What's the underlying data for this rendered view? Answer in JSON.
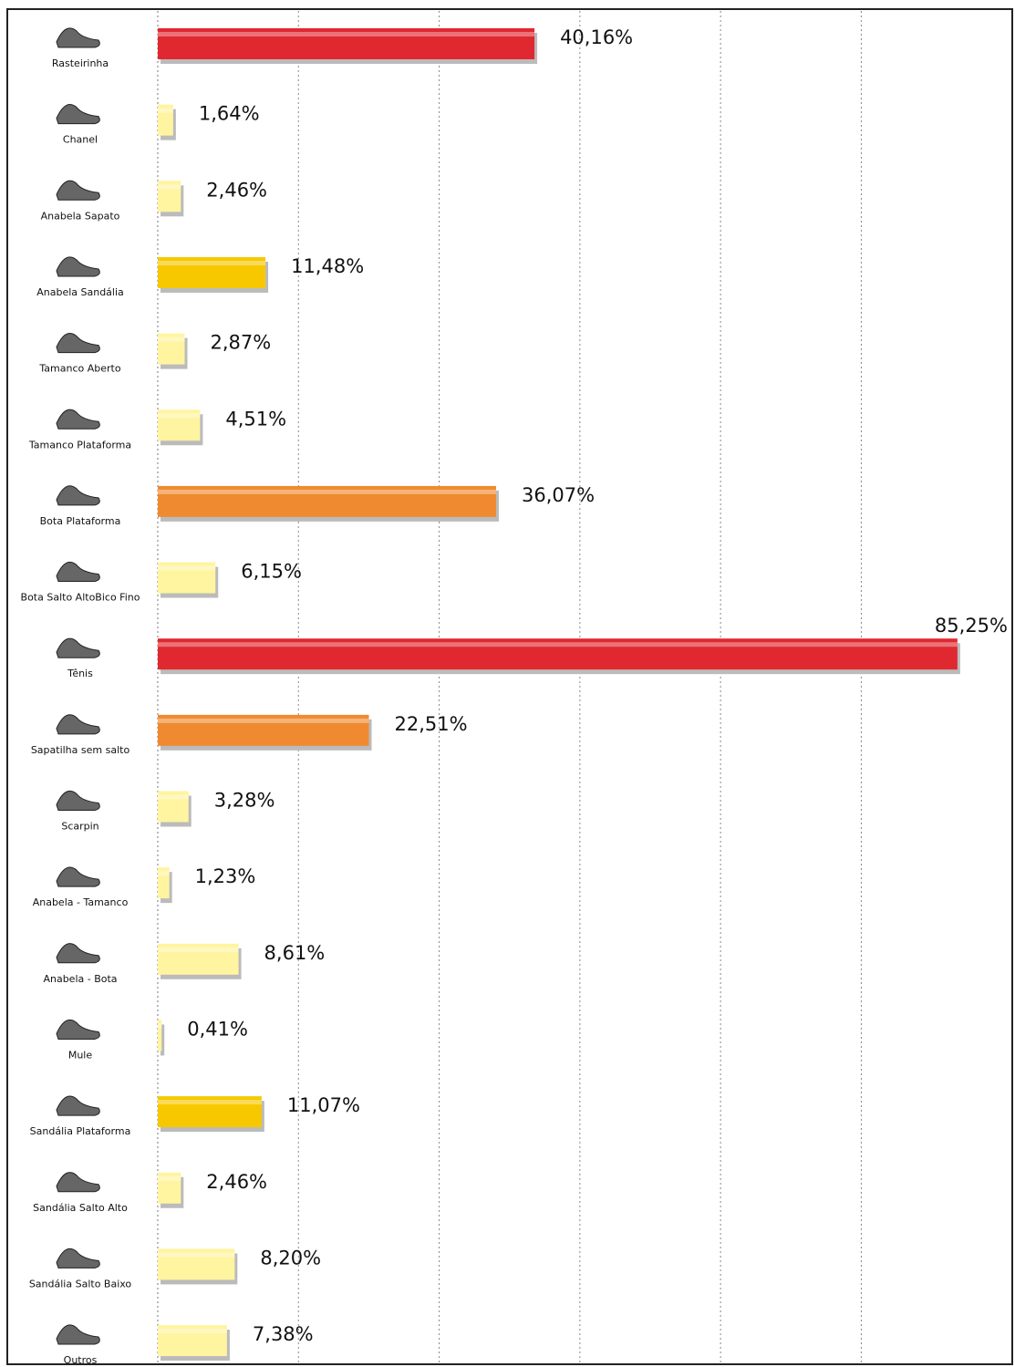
{
  "chart_data": {
    "type": "barh",
    "categories": [
      "Rasteirinha",
      "Chanel",
      "Anabela  Sapato",
      "Anabela  Sandália",
      "Tamanco Aberto",
      "Tamanco Plataforma",
      "Bota Plataforma",
      "Bota Salto AltoBico Fino",
      "Tênis",
      "Sapatilha sem salto",
      "Scarpin",
      "Anabela - Tamanco",
      "Anabela - Bota",
      "Mule",
      "Sandália Plataforma",
      "Sandália Salto Alto",
      "Sandália Salto Baixo",
      "Outros"
    ],
    "values": [
      40.16,
      1.64,
      2.46,
      11.48,
      2.87,
      4.51,
      36.07,
      6.15,
      85.25,
      22.51,
      3.28,
      1.23,
      8.61,
      0.41,
      11.07,
      2.46,
      8.2,
      7.38
    ],
    "value_labels": [
      "40,16%",
      "1,64%",
      "2,46%",
      "11,48%",
      "2,87%",
      "4,51%",
      "36,07%",
      "6,15%",
      "85,25%",
      "22,51%",
      "3,28%",
      "1,23%",
      "8,61%",
      "0,41%",
      "11,07%",
      "2,46%",
      "8,20%",
      "7,38%"
    ],
    "colors": [
      "#e02830",
      "#fff4a0",
      "#fff4a0",
      "#f7c800",
      "#fff4a0",
      "#fff4a0",
      "#f08a30",
      "#fff4a0",
      "#e02830",
      "#f08a30",
      "#fff4a0",
      "#fff4a0",
      "#fff4a0",
      "#fff4a0",
      "#f7c800",
      "#fff4a0",
      "#fff4a0",
      "#fff4a0"
    ],
    "xlim": [
      0,
      91
    ],
    "xticks": [
      15,
      30,
      45,
      60,
      75
    ],
    "grid": true
  }
}
